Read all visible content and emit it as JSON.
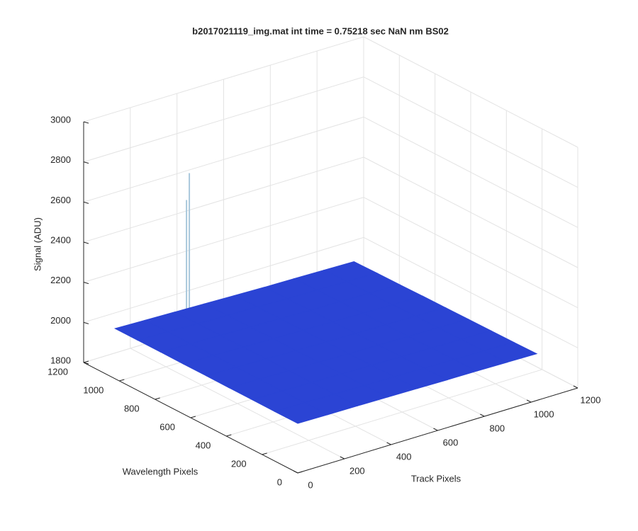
{
  "chart_data": {
    "type": "surface",
    "title": "b2017021119_img.mat int time = 0.75218 sec  NaN nm BS02",
    "xlabel": "Track Pixels",
    "ylabel": "Wavelength Pixels",
    "zlabel": "Signal (ADU)",
    "xlim": [
      0,
      1200
    ],
    "ylim": [
      0,
      1200
    ],
    "zlim": [
      1800,
      3000
    ],
    "xticks": [
      0,
      200,
      400,
      600,
      800,
      1000,
      1200
    ],
    "yticks": [
      0,
      200,
      400,
      600,
      800,
      1000,
      1200
    ],
    "zticks": [
      1800,
      2000,
      2200,
      2400,
      2600,
      2800,
      3000
    ],
    "grid": true,
    "color": "#2b44d4",
    "peak_color": "#a9c8dc",
    "x": [
      0,
      128,
      256,
      384,
      512,
      640,
      768,
      896,
      1024
    ],
    "y": [
      0,
      128,
      256,
      384,
      512,
      640,
      768,
      896,
      1024
    ],
    "z": [
      [
        2047,
        2045,
        2044,
        2042,
        2040,
        2038,
        2037,
        2035,
        2033
      ],
      [
        2047,
        2046,
        2043,
        2041,
        2039,
        2037,
        2035,
        2033,
        2031
      ],
      [
        2048,
        2045,
        2043,
        2040,
        2038,
        2036,
        2034,
        2032,
        2030
      ],
      [
        2048,
        2046,
        2042,
        2040,
        2037,
        2035,
        2033,
        2031,
        2029
      ],
      [
        2049,
        2046,
        2043,
        2039,
        2037,
        2034,
        2032,
        2030,
        2028
      ],
      [
        2049,
        2047,
        2042,
        2040,
        2036,
        2033,
        2031,
        2028,
        2027
      ],
      [
        2050,
        2046,
        2043,
        2039,
        2035,
        2032,
        2030,
        2027,
        2025
      ],
      [
        2050,
        2047,
        2042,
        2038,
        2035,
        2031,
        2029,
        2026,
        2024
      ],
      [
        2050,
        2046,
        2042,
        2038,
        2034,
        2030,
        2028,
        2025,
        2022
      ]
    ],
    "peaks": {
      "x": [
        300,
        288
      ],
      "y": [
        1000,
        1000
      ],
      "z": [
        2730,
        2600
      ]
    }
  }
}
